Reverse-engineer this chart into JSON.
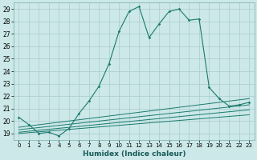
{
  "xlabel": "Humidex (Indice chaleur)",
  "bg_color": "#cce8e8",
  "grid_color": "#aacccc",
  "line_color": "#1a7a6e",
  "xlim": [
    -0.5,
    23.5
  ],
  "ylim": [
    18.5,
    29.5
  ],
  "xticks": [
    0,
    1,
    2,
    3,
    4,
    5,
    6,
    7,
    8,
    9,
    10,
    11,
    12,
    13,
    14,
    15,
    16,
    17,
    18,
    19,
    20,
    21,
    22,
    23
  ],
  "yticks": [
    19,
    20,
    21,
    22,
    23,
    24,
    25,
    26,
    27,
    28,
    29
  ],
  "series": [
    [
      0,
      20.3
    ],
    [
      1,
      19.7
    ],
    [
      2,
      19.0
    ],
    [
      3,
      19.1
    ],
    [
      4,
      18.8
    ],
    [
      5,
      19.4
    ],
    [
      6,
      20.6
    ],
    [
      7,
      21.6
    ],
    [
      8,
      22.8
    ],
    [
      9,
      24.6
    ],
    [
      10,
      27.2
    ],
    [
      11,
      28.8
    ],
    [
      12,
      29.2
    ],
    [
      13,
      26.7
    ],
    [
      14,
      27.8
    ],
    [
      15,
      28.8
    ],
    [
      16,
      29.0
    ],
    [
      17,
      28.1
    ],
    [
      18,
      28.2
    ],
    [
      19,
      22.7
    ],
    [
      20,
      21.8
    ],
    [
      21,
      21.2
    ],
    [
      22,
      21.3
    ],
    [
      23,
      21.5
    ]
  ],
  "linear_series": [
    [
      [
        0,
        19.5
      ],
      [
        23,
        21.8
      ]
    ],
    [
      [
        0,
        19.3
      ],
      [
        23,
        21.3
      ]
    ],
    [
      [
        0,
        19.1
      ],
      [
        23,
        20.9
      ]
    ],
    [
      [
        0,
        19.0
      ],
      [
        23,
        20.5
      ]
    ]
  ]
}
